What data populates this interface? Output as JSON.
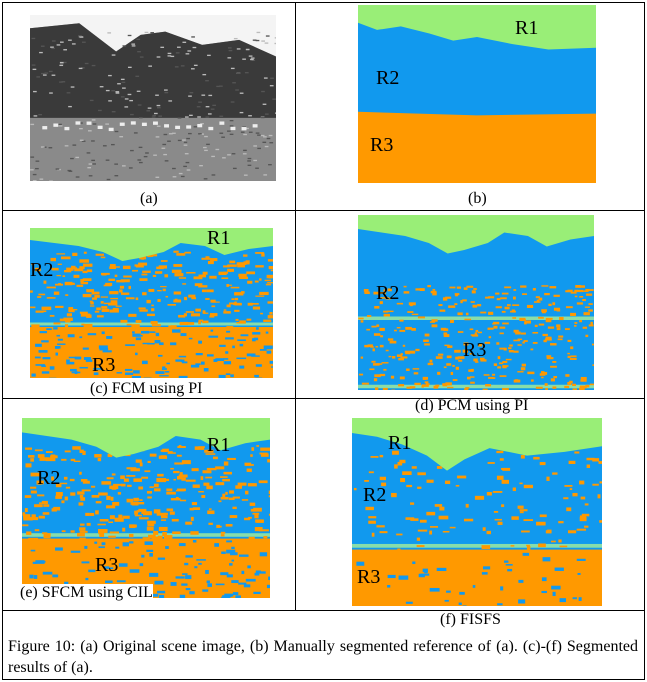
{
  "panels": [
    {
      "label": "(a)",
      "regions": []
    },
    {
      "label": "(b)",
      "regions": [
        "R1",
        "R2",
        "R3"
      ]
    },
    {
      "label": "(c) FCM using PI",
      "regions": [
        "R1",
        "R2",
        "R3"
      ]
    },
    {
      "label": "(d) PCM using PI",
      "regions": [
        "R2",
        "R3"
      ]
    },
    {
      "label": "(e) SFCM using CIL",
      "regions": [
        "R1",
        "R2",
        "R3"
      ]
    },
    {
      "label": "(f) FISFS",
      "regions": [
        "R1",
        "R2",
        "R3"
      ]
    }
  ],
  "caption": "Figure 10: (a) Original scene image, (b) Manually segmented reference of (a). (c)-(f) Segmented results of (a)."
}
